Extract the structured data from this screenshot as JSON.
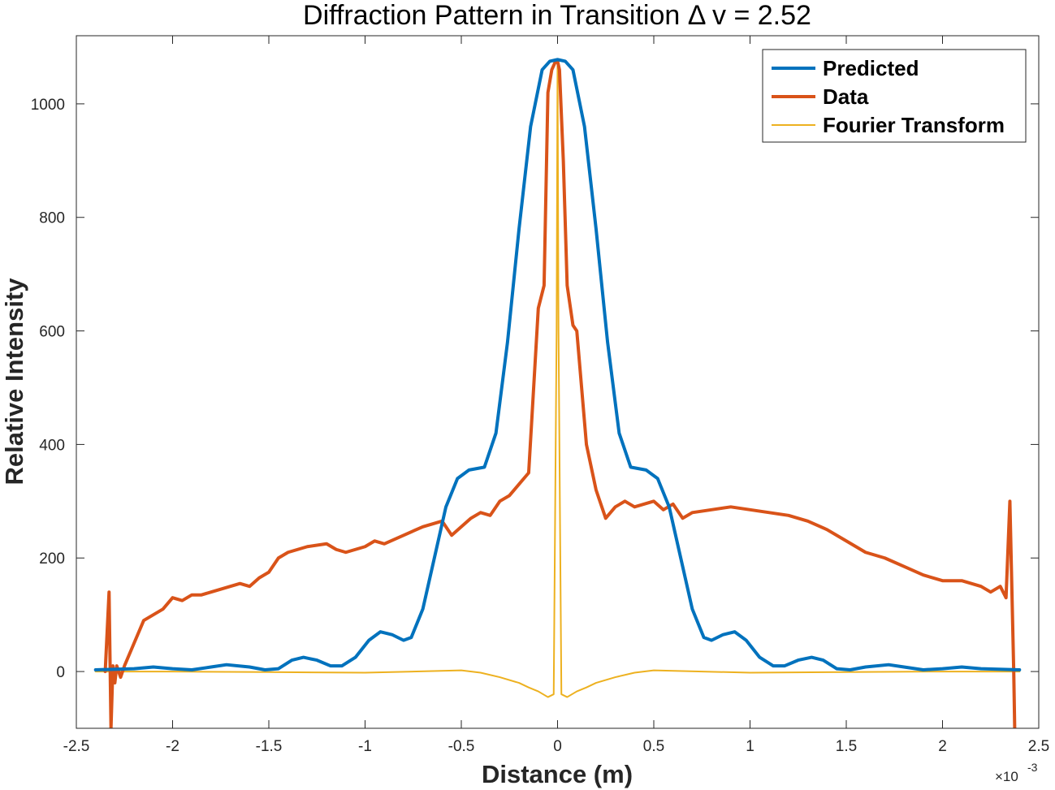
{
  "chart_data": {
    "type": "line",
    "title": "Diffraction Pattern in Transition Δ v = 2.52",
    "xlabel": "Distance (m)",
    "ylabel": "Relative Intensity",
    "x_exponent_label": "×10",
    "x_exponent_power": "-3",
    "xlim": [
      -2.5,
      2.5
    ],
    "ylim": [
      -100,
      1120
    ],
    "x_unit_multiplier": "1e-3",
    "xticks": [
      -2.5,
      -2,
      -1.5,
      -1,
      -0.5,
      0,
      0.5,
      1,
      1.5,
      2,
      2.5
    ],
    "xtick_labels": [
      "-2.5",
      "-2",
      "-1.5",
      "-1",
      "-0.5",
      "0",
      "0.5",
      "1",
      "1.5",
      "2",
      "2.5"
    ],
    "yticks": [
      0,
      200,
      400,
      600,
      800,
      1000
    ],
    "ytick_labels": [
      "0",
      "200",
      "400",
      "600",
      "800",
      "1000"
    ],
    "grid": false,
    "box": true,
    "legend_position": "top-right",
    "series": [
      {
        "name": "Predicted",
        "color": "#0072BD",
        "width": 4,
        "x": [
          -2.4,
          -2.2,
          -2.1,
          -2.0,
          -1.9,
          -1.8,
          -1.72,
          -1.6,
          -1.52,
          -1.45,
          -1.38,
          -1.32,
          -1.25,
          -1.18,
          -1.12,
          -1.05,
          -0.98,
          -0.92,
          -0.86,
          -0.8,
          -0.76,
          -0.7,
          -0.64,
          -0.58,
          -0.52,
          -0.46,
          -0.38,
          -0.32,
          -0.26,
          -0.2,
          -0.14,
          -0.08,
          -0.04,
          0,
          0.04,
          0.08,
          0.14,
          0.2,
          0.26,
          0.32,
          0.38,
          0.46,
          0.52,
          0.58,
          0.64,
          0.7,
          0.76,
          0.8,
          0.86,
          0.92,
          0.98,
          1.05,
          1.12,
          1.18,
          1.25,
          1.32,
          1.38,
          1.45,
          1.52,
          1.6,
          1.72,
          1.8,
          1.9,
          2.0,
          2.1,
          2.2,
          2.4
        ],
        "y": [
          3,
          5,
          8,
          5,
          3,
          8,
          12,
          8,
          3,
          5,
          20,
          25,
          20,
          10,
          10,
          25,
          55,
          70,
          65,
          55,
          60,
          110,
          200,
          290,
          340,
          355,
          360,
          420,
          580,
          780,
          960,
          1060,
          1075,
          1078,
          1075,
          1060,
          960,
          780,
          580,
          420,
          360,
          355,
          340,
          290,
          200,
          110,
          60,
          55,
          65,
          70,
          55,
          25,
          10,
          10,
          20,
          25,
          20,
          5,
          3,
          8,
          12,
          8,
          3,
          5,
          8,
          5,
          3
        ]
      },
      {
        "name": "Data",
        "color": "#D95319",
        "width": 4,
        "x": [
          -2.35,
          -2.33,
          -2.32,
          -2.31,
          -2.3,
          -2.29,
          -2.27,
          -2.25,
          -2.2,
          -2.15,
          -2.1,
          -2.05,
          -2.0,
          -1.95,
          -1.9,
          -1.85,
          -1.8,
          -1.7,
          -1.65,
          -1.6,
          -1.55,
          -1.5,
          -1.45,
          -1.4,
          -1.35,
          -1.3,
          -1.2,
          -1.15,
          -1.1,
          -1.0,
          -0.95,
          -0.9,
          -0.8,
          -0.7,
          -0.6,
          -0.55,
          -0.5,
          -0.45,
          -0.4,
          -0.35,
          -0.3,
          -0.25,
          -0.2,
          -0.15,
          -0.1,
          -0.07,
          -0.05,
          -0.03,
          -0.01,
          0,
          0.01,
          0.03,
          0.05,
          0.08,
          0.1,
          0.15,
          0.2,
          0.22,
          0.25,
          0.3,
          0.35,
          0.4,
          0.45,
          0.5,
          0.55,
          0.6,
          0.65,
          0.7,
          0.8,
          0.9,
          1.0,
          1.1,
          1.2,
          1.3,
          1.4,
          1.5,
          1.6,
          1.7,
          1.8,
          1.9,
          2.0,
          2.1,
          2.2,
          2.25,
          2.3,
          2.33,
          2.35,
          2.36,
          2.37,
          2.375
        ],
        "y": [
          0,
          140,
          -100,
          10,
          -20,
          10,
          -10,
          10,
          50,
          90,
          100,
          110,
          130,
          125,
          135,
          135,
          140,
          150,
          155,
          150,
          165,
          175,
          200,
          210,
          215,
          220,
          225,
          215,
          210,
          220,
          230,
          225,
          240,
          255,
          265,
          240,
          255,
          270,
          280,
          275,
          300,
          310,
          330,
          350,
          640,
          680,
          1020,
          1060,
          1075,
          1075,
          1060,
          900,
          680,
          610,
          600,
          400,
          320,
          300,
          270,
          290,
          300,
          290,
          295,
          300,
          285,
          295,
          270,
          280,
          285,
          290,
          285,
          280,
          275,
          265,
          250,
          230,
          210,
          200,
          185,
          170,
          160,
          160,
          150,
          140,
          150,
          130,
          300,
          150,
          0,
          -100
        ]
      },
      {
        "name": "Fourier Transform",
        "color": "#EDB120",
        "width": 2,
        "x": [
          -2.4,
          -2.0,
          -1.5,
          -1.0,
          -0.5,
          -0.4,
          -0.3,
          -0.2,
          -0.15,
          -0.1,
          -0.05,
          -0.02,
          -0.005,
          0,
          0.005,
          0.02,
          0.05,
          0.1,
          0.15,
          0.2,
          0.3,
          0.4,
          0.5,
          1.0,
          1.5,
          2.0,
          2.4
        ],
        "y": [
          0,
          0,
          -1,
          -2,
          2,
          -2,
          -10,
          -20,
          -28,
          -35,
          -45,
          -40,
          600,
          1078,
          600,
          -40,
          -45,
          -35,
          -28,
          -20,
          -10,
          -2,
          2,
          -2,
          -1,
          0,
          0
        ]
      }
    ]
  }
}
